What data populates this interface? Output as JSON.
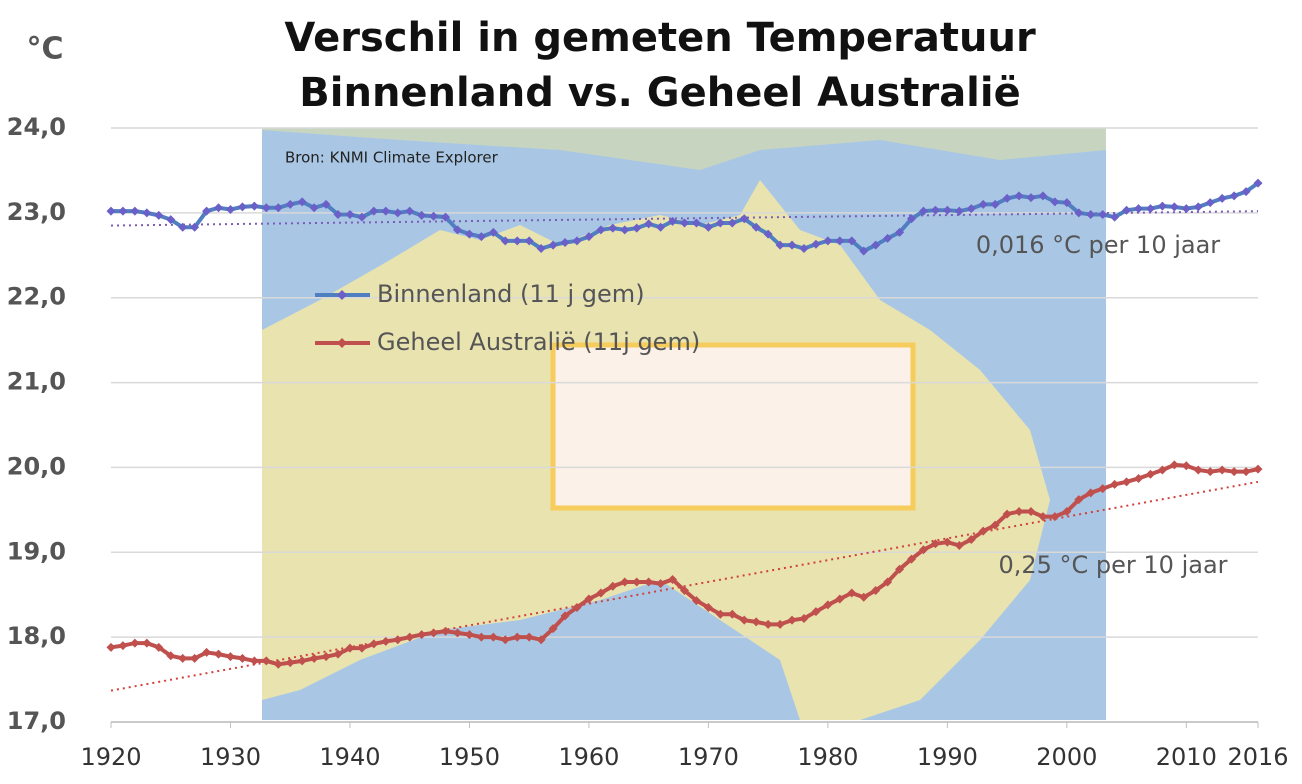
{
  "chart_data": {
    "type": "line",
    "title": [
      "Verschil in gemeten Temperatuur",
      "Binnenland vs. Geheel Australië"
    ],
    "y_label": "°C",
    "source": "Bron: KNMI Climate Explorer",
    "x": [
      1920,
      1921,
      1922,
      1923,
      1924,
      1925,
      1926,
      1927,
      1928,
      1929,
      1930,
      1931,
      1932,
      1933,
      1934,
      1935,
      1936,
      1937,
      1938,
      1939,
      1940,
      1941,
      1942,
      1943,
      1944,
      1945,
      1946,
      1947,
      1948,
      1949,
      1950,
      1951,
      1952,
      1953,
      1954,
      1955,
      1956,
      1957,
      1958,
      1959,
      1960,
      1961,
      1962,
      1963,
      1964,
      1965,
      1966,
      1967,
      1968,
      1969,
      1970,
      1971,
      1972,
      1973,
      1974,
      1975,
      1976,
      1977,
      1978,
      1979,
      1980,
      1981,
      1982,
      1983,
      1984,
      1985,
      1986,
      1987,
      1988,
      1989,
      1990,
      1991,
      1992,
      1993,
      1994,
      1995,
      1996,
      1997,
      1998,
      1999,
      2000,
      2001,
      2002,
      2003,
      2004,
      2005,
      2006,
      2007,
      2008,
      2009,
      2010,
      2011,
      2012,
      2013,
      2014,
      2015,
      2016
    ],
    "series": [
      {
        "name": "Binnenland (11 j gem)",
        "color": "#4f7fc0",
        "marker_color": "#6b5fc8",
        "values": [
          23.02,
          23.02,
          23.02,
          23.0,
          22.97,
          22.92,
          22.83,
          22.83,
          23.02,
          23.06,
          23.04,
          23.07,
          23.08,
          23.06,
          23.06,
          23.1,
          23.13,
          23.06,
          23.1,
          22.98,
          22.98,
          22.95,
          23.02,
          23.02,
          23.0,
          23.02,
          22.97,
          22.96,
          22.95,
          22.8,
          22.75,
          22.72,
          22.77,
          22.67,
          22.67,
          22.67,
          22.58,
          22.62,
          22.65,
          22.67,
          22.72,
          22.8,
          22.82,
          22.8,
          22.82,
          22.87,
          22.83,
          22.9,
          22.88,
          22.88,
          22.83,
          22.88,
          22.88,
          22.93,
          22.83,
          22.75,
          22.62,
          22.62,
          22.58,
          22.63,
          22.67,
          22.67,
          22.67,
          22.55,
          22.62,
          22.7,
          22.77,
          22.93,
          23.02,
          23.03,
          23.03,
          23.02,
          23.05,
          23.1,
          23.1,
          23.17,
          23.2,
          23.18,
          23.2,
          23.13,
          23.12,
          23.0,
          22.98,
          22.98,
          22.95,
          23.03,
          23.05,
          23.05,
          23.08,
          23.07,
          23.05,
          23.07,
          23.12,
          23.17,
          23.2,
          23.25,
          23.35
        ],
        "trend": {
          "x": [
            1920,
            2016
          ],
          "values": [
            22.85,
            23.02
          ],
          "color": "#7a5cb8"
        },
        "trend_label": "0,016 °C per 10 jaar"
      },
      {
        "name": "Geheel Australië (11j gem)",
        "color": "#c0504d",
        "marker_color": "#c0504d",
        "values": [
          17.88,
          17.9,
          17.93,
          17.93,
          17.88,
          17.78,
          17.75,
          17.75,
          17.82,
          17.8,
          17.77,
          17.75,
          17.72,
          17.72,
          17.68,
          17.7,
          17.72,
          17.75,
          17.77,
          17.8,
          17.87,
          17.87,
          17.92,
          17.95,
          17.97,
          18.0,
          18.03,
          18.05,
          18.07,
          18.05,
          18.03,
          18.0,
          18.0,
          17.97,
          18.0,
          18.0,
          17.97,
          18.1,
          18.25,
          18.35,
          18.45,
          18.52,
          18.6,
          18.65,
          18.65,
          18.65,
          18.63,
          18.68,
          18.55,
          18.43,
          18.35,
          18.27,
          18.27,
          18.2,
          18.18,
          18.15,
          18.15,
          18.2,
          18.22,
          18.3,
          18.38,
          18.45,
          18.52,
          18.47,
          18.55,
          18.65,
          18.8,
          18.92,
          19.03,
          19.1,
          19.12,
          19.08,
          19.15,
          19.25,
          19.32,
          19.45,
          19.48,
          19.48,
          19.42,
          19.42,
          19.48,
          19.62,
          19.7,
          19.75,
          19.8,
          19.83,
          19.87,
          19.92,
          19.97,
          20.03,
          20.02,
          19.97,
          19.95,
          19.97,
          19.95,
          19.95,
          19.98
        ],
        "trend": {
          "x": [
            1920,
            2016
          ],
          "values": [
            17.37,
            19.83
          ],
          "color": "#d0403a"
        },
        "trend_label": "0,25 °C per 10 jaar"
      }
    ],
    "xlim": [
      1920,
      2016
    ],
    "xticks": [
      1920,
      1930,
      1940,
      1950,
      1960,
      1970,
      1980,
      1990,
      2000,
      2010,
      2016
    ],
    "ylim": [
      17,
      24
    ],
    "yticks": [
      {
        "value": 17,
        "label": "17,0"
      },
      {
        "value": 18,
        "label": "18,0"
      },
      {
        "value": 19,
        "label": "19,0"
      },
      {
        "value": 20,
        "label": "20,0"
      },
      {
        "value": 21,
        "label": "21,0"
      },
      {
        "value": 22,
        "label": "22,0"
      },
      {
        "value": 23,
        "label": "23,0"
      },
      {
        "value": 24,
        "label": "24,0"
      }
    ],
    "grid": true
  }
}
